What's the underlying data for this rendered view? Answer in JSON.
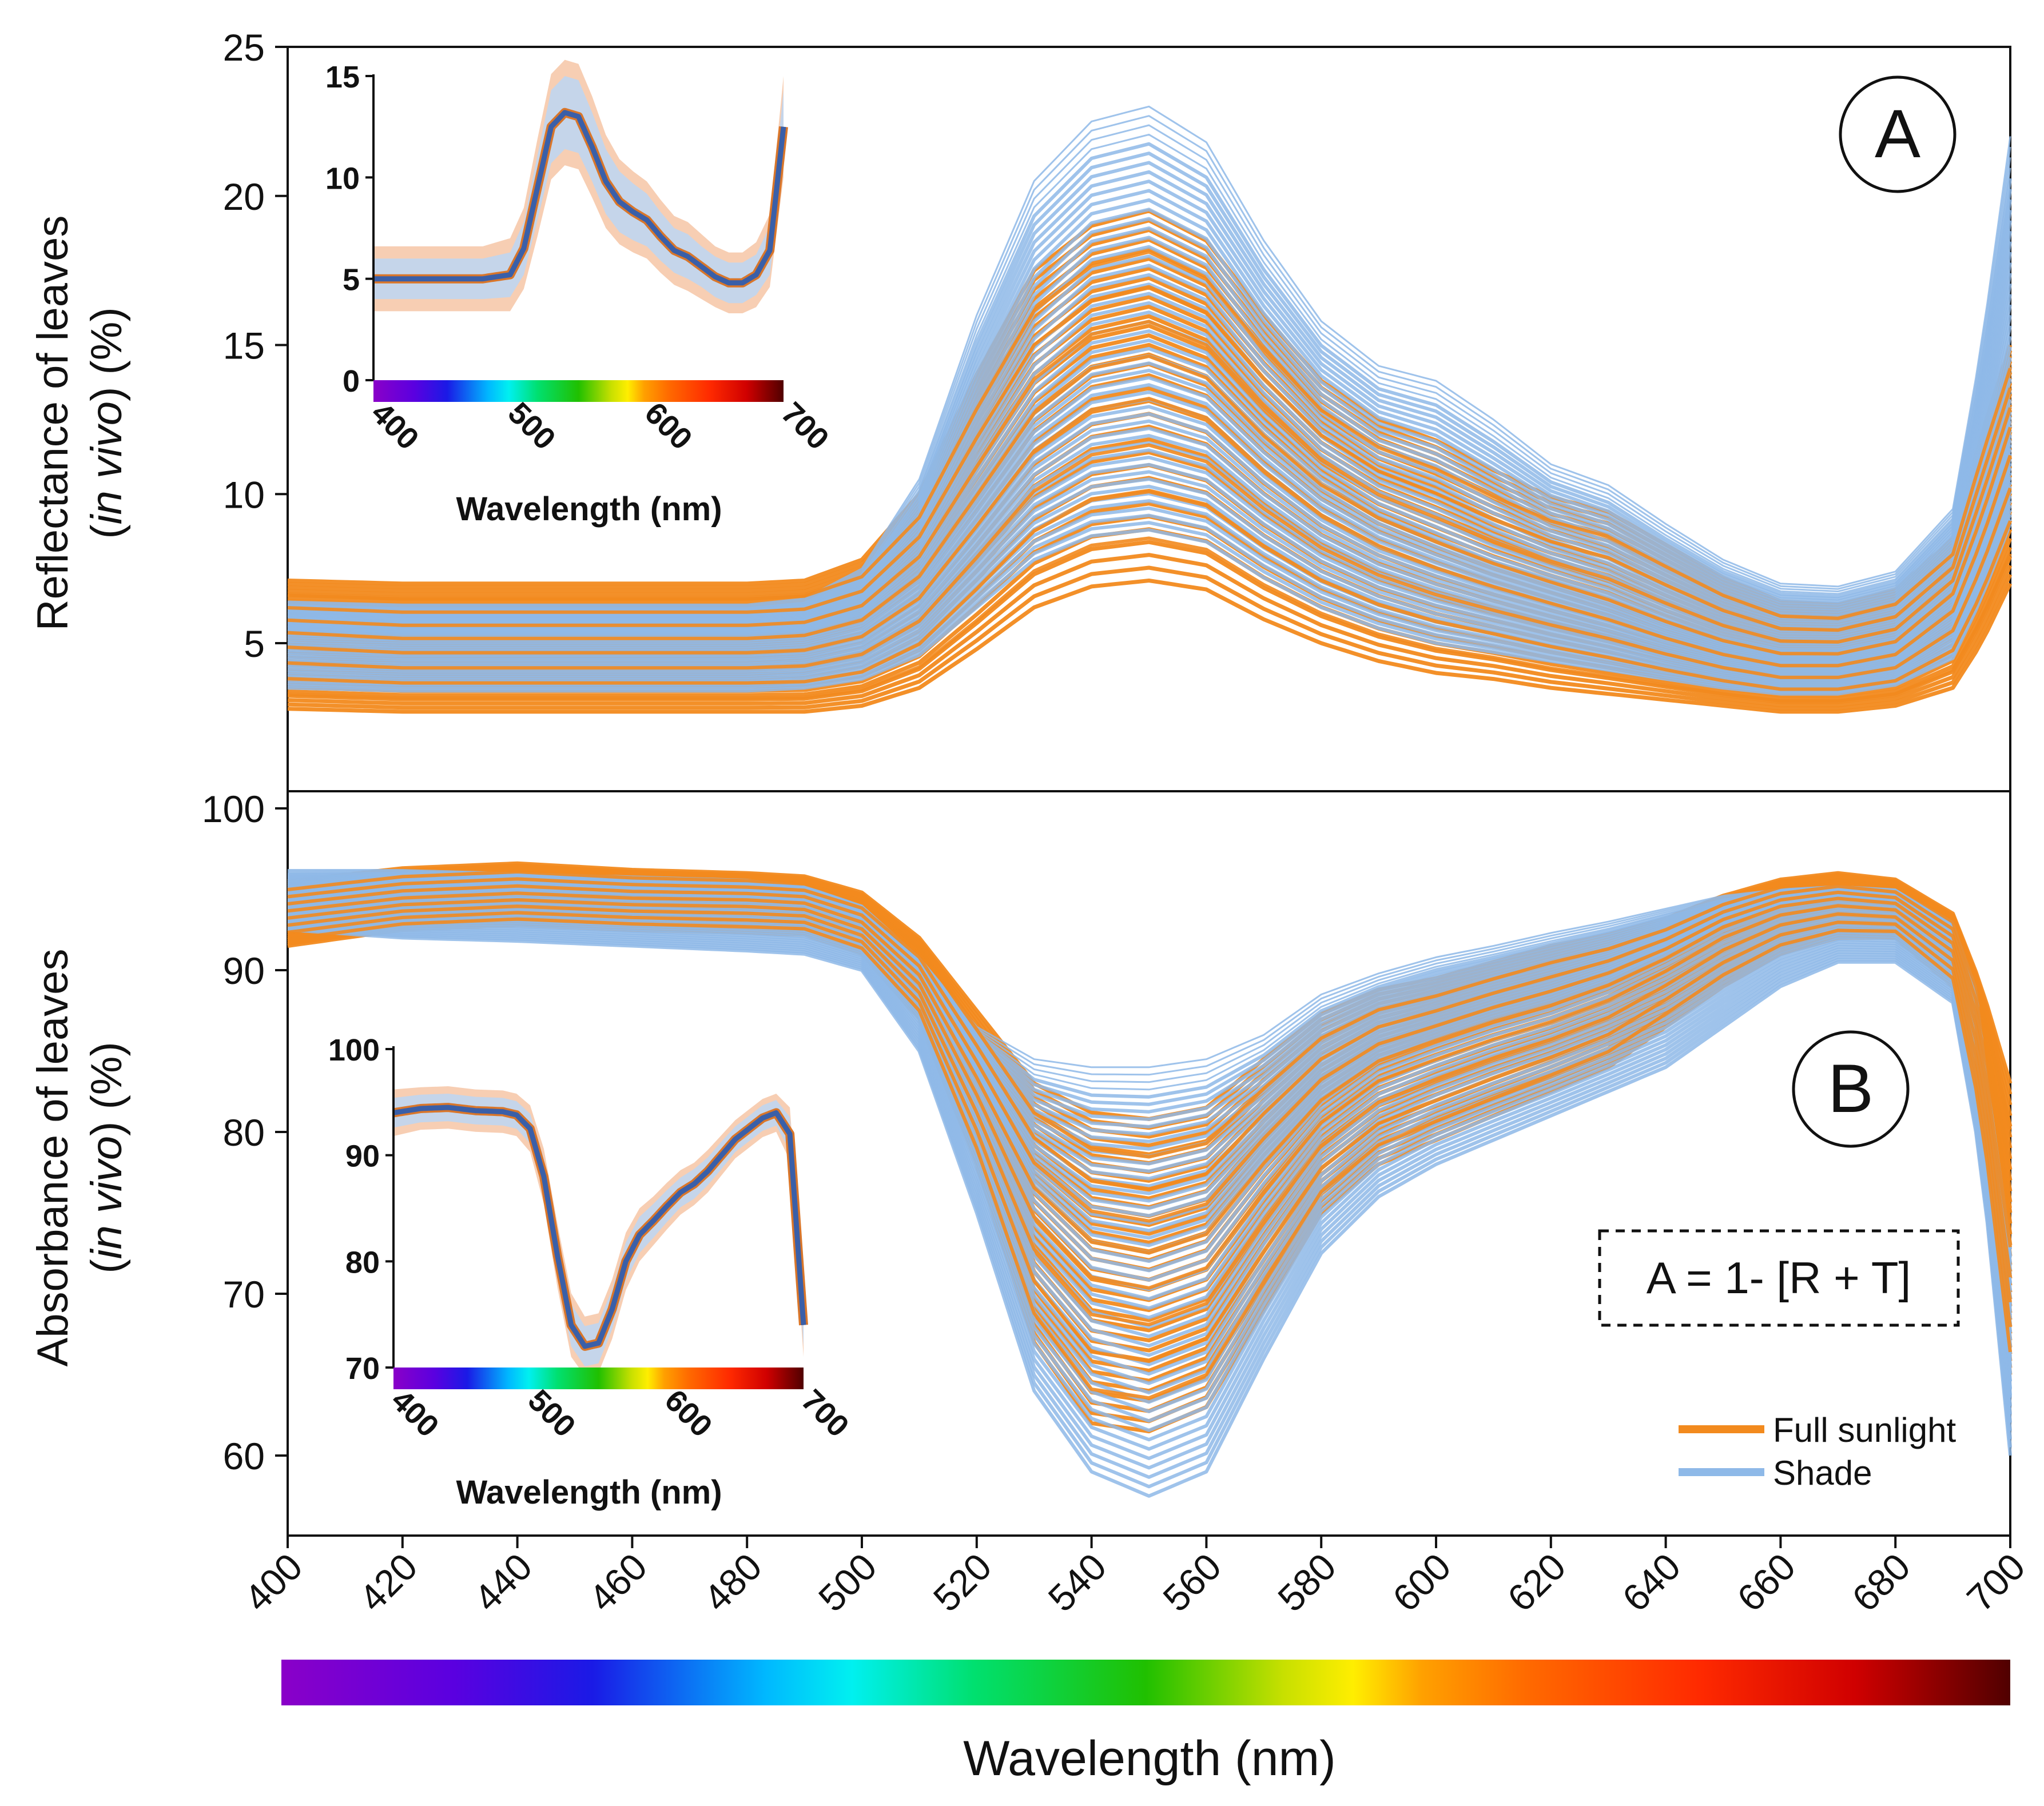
{
  "colors": {
    "sun": "#F28A1E",
    "shade": "#8EB9E8",
    "inset_sun_band": "#F6C6A6",
    "inset_shade_band": "#BFD6F0",
    "inset_mean": "#3A5FA8",
    "inset_mean_outline": "#D9762A"
  },
  "panelA": {
    "label": "A",
    "ylabel_line1": "Reflectance of leaves",
    "ylabel_line2_italic": "in vivo",
    "ylabel_line2_open": "(",
    "ylabel_line2_close": ") (%)"
  },
  "panelB": {
    "label": "B",
    "ylabel_line1": "Absorbance of leaves",
    "ylabel_line2_italic": "in vivo",
    "ylabel_line2_open": "(",
    "ylabel_line2_close": ") (%)",
    "formula": "A = 1- [R + T]"
  },
  "legend": {
    "items": [
      {
        "label": "Full sunlight",
        "color": "#F28A1E"
      },
      {
        "label": "Shade",
        "color": "#8EB9E8"
      }
    ]
  },
  "xaxis": {
    "label": "Wavelength (nm)"
  },
  "insets": {
    "A": {
      "xlabel": "Wavelength (nm)"
    },
    "B": {
      "xlabel": "Wavelength (nm)"
    }
  },
  "chart_data": [
    {
      "id": "panelA",
      "type": "line",
      "title": "",
      "ylabel": "Reflectance of leaves (in vivo) (%)",
      "xlabel": "Wavelength (nm)",
      "xlim": [
        400,
        700
      ],
      "ylim": [
        0,
        25
      ],
      "xticks": [
        400,
        420,
        440,
        460,
        480,
        500,
        520,
        540,
        560,
        580,
        600,
        620,
        640,
        660,
        680,
        700
      ],
      "yticks": [
        5,
        10,
        15,
        20,
        25
      ],
      "x": [
        400,
        420,
        440,
        460,
        480,
        490,
        500,
        510,
        520,
        530,
        540,
        550,
        560,
        570,
        580,
        590,
        600,
        610,
        620,
        630,
        640,
        650,
        660,
        670,
        680,
        690,
        695,
        700
      ],
      "series": [
        {
          "name": "Full sunlight (low)",
          "values": [
            2.8,
            2.7,
            2.7,
            2.7,
            2.7,
            2.7,
            2.9,
            3.5,
            4.8,
            6.2,
            6.9,
            7.1,
            6.8,
            5.8,
            5.0,
            4.4,
            4.0,
            3.8,
            3.5,
            3.3,
            3.1,
            2.9,
            2.7,
            2.7,
            2.9,
            3.5,
            5.0,
            7.0
          ]
        },
        {
          "name": "Full sunlight (mid)",
          "values": [
            5.2,
            5.0,
            5.0,
            5.0,
            5.0,
            5.1,
            5.6,
            7.0,
            9.6,
            12.3,
            13.8,
            14.2,
            13.5,
            11.6,
            10.0,
            8.9,
            8.1,
            7.4,
            6.8,
            6.2,
            5.5,
            4.9,
            4.5,
            4.5,
            4.9,
            6.5,
            9.0,
            12.0
          ]
        },
        {
          "name": "Full sunlight (high)",
          "values": [
            7.1,
            7.0,
            7.0,
            7.0,
            7.0,
            7.1,
            7.8,
            10.0,
            14.0,
            17.5,
            19.0,
            19.5,
            18.5,
            16.0,
            13.8,
            12.5,
            11.8,
            10.8,
            9.9,
            9.4,
            8.3,
            7.2,
            6.4,
            6.3,
            6.8,
            8.5,
            12.0,
            15.0
          ]
        },
        {
          "name": "Shade (low)",
          "values": [
            3.5,
            3.4,
            3.4,
            3.4,
            3.4,
            3.5,
            3.8,
            4.6,
            6.2,
            7.8,
            8.6,
            8.8,
            8.4,
            7.2,
            6.2,
            5.5,
            5.0,
            4.7,
            4.4,
            4.1,
            3.8,
            3.5,
            3.3,
            3.3,
            3.6,
            4.5,
            6.5,
            9.0
          ]
        },
        {
          "name": "Shade (mid)",
          "values": [
            5.4,
            5.3,
            5.3,
            5.3,
            5.3,
            5.4,
            5.9,
            7.4,
            10.2,
            13.0,
            14.6,
            15.0,
            14.3,
            12.3,
            10.6,
            9.4,
            8.6,
            7.8,
            7.2,
            6.6,
            5.8,
            5.2,
            4.8,
            4.8,
            5.2,
            6.9,
            9.6,
            13.0
          ]
        },
        {
          "name": "Shade (high)",
          "values": [
            6.4,
            6.3,
            6.3,
            6.3,
            6.3,
            6.5,
            7.5,
            10.5,
            16.0,
            20.5,
            22.5,
            23.0,
            21.8,
            18.5,
            15.8,
            14.3,
            13.8,
            12.5,
            11.0,
            10.3,
            9.0,
            7.8,
            7.0,
            6.9,
            7.4,
            9.5,
            15.0,
            22.0
          ]
        }
      ]
    },
    {
      "id": "panelB",
      "type": "line",
      "title": "",
      "ylabel": "Absorbance of leaves (in vivo) (%)",
      "xlabel": "Wavelength (nm)",
      "xlim": [
        400,
        700
      ],
      "ylim": [
        55,
        100
      ],
      "xticks": [
        400,
        420,
        440,
        460,
        480,
        500,
        520,
        540,
        560,
        580,
        600,
        620,
        640,
        660,
        680,
        700
      ],
      "xtick_labels": [
        "400",
        "420",
        "440",
        "460",
        "480",
        "500",
        "520",
        "540",
        "560",
        "580",
        "600",
        "620",
        "640",
        "660",
        "680",
        "700"
      ],
      "yticks": [
        60,
        70,
        80,
        90,
        100
      ],
      "x": [
        400,
        420,
        440,
        460,
        480,
        490,
        500,
        510,
        520,
        530,
        540,
        550,
        560,
        570,
        580,
        590,
        600,
        610,
        620,
        630,
        640,
        650,
        660,
        670,
        680,
        690,
        695,
        700
      ],
      "series": [
        {
          "name": "Full sunlight (low)",
          "values": [
            91.5,
            92.5,
            92.8,
            92.5,
            92.3,
            92.2,
            91.0,
            87.0,
            78.0,
            67.0,
            62.0,
            61.5,
            63.0,
            69.0,
            75.0,
            78.0,
            79.5,
            81.0,
            82.5,
            84.0,
            86.5,
            89.0,
            91.0,
            92.0,
            92.0,
            89.0,
            80.0,
            65.0
          ]
        },
        {
          "name": "Full sunlight (mid)",
          "values": [
            93.5,
            94.3,
            94.6,
            94.3,
            94.2,
            94.0,
            92.8,
            89.5,
            83.0,
            76.0,
            72.5,
            71.8,
            73.0,
            77.5,
            81.5,
            84.0,
            85.3,
            86.5,
            87.5,
            88.8,
            90.5,
            92.5,
            93.8,
            94.3,
            94.0,
            91.5,
            85.0,
            72.0
          ]
        },
        {
          "name": "Full sunlight (high)",
          "values": [
            95.5,
            96.3,
            96.6,
            96.2,
            96.0,
            95.8,
            94.8,
            92.0,
            87.5,
            83.0,
            81.2,
            80.8,
            81.5,
            84.5,
            87.3,
            88.8,
            89.5,
            90.5,
            91.5,
            92.2,
            93.2,
            94.6,
            95.6,
            96.0,
            95.6,
            93.5,
            89.0,
            83.0
          ]
        },
        {
          "name": "Shade (low)",
          "values": [
            92.5,
            92.0,
            91.8,
            91.5,
            91.2,
            91.0,
            90.0,
            85.0,
            75.0,
            64.0,
            59.0,
            57.5,
            59.0,
            66.0,
            72.5,
            76.0,
            78.0,
            79.5,
            81.0,
            82.5,
            84.0,
            86.5,
            89.0,
            90.5,
            90.5,
            88.0,
            78.0,
            60.0
          ]
        },
        {
          "name": "Shade (mid)",
          "values": [
            94.3,
            94.8,
            95.0,
            94.8,
            94.6,
            94.4,
            93.2,
            90.0,
            83.5,
            76.5,
            73.0,
            72.3,
            73.5,
            78.0,
            82.0,
            84.5,
            85.8,
            87.0,
            88.0,
            89.3,
            91.0,
            92.8,
            94.0,
            94.5,
            94.2,
            91.8,
            85.5,
            73.0
          ]
        },
        {
          "name": "Shade (high)",
          "values": [
            96.2,
            96.2,
            96.0,
            95.8,
            95.6,
            95.2,
            94.0,
            90.8,
            86.5,
            84.5,
            84.0,
            84.0,
            84.5,
            86.0,
            88.5,
            89.8,
            90.8,
            91.5,
            92.3,
            93.0,
            93.8,
            94.6,
            95.0,
            95.2,
            95.0,
            93.0,
            88.0,
            62.0
          ]
        }
      ]
    },
    {
      "id": "insetA",
      "type": "line",
      "xlabel": "Wavelength (nm)",
      "xlim": [
        400,
        700
      ],
      "ylim": [
        0,
        15
      ],
      "xticks": [
        400,
        500,
        600,
        700
      ],
      "yticks": [
        0,
        5,
        10,
        15
      ],
      "x": [
        400,
        420,
        440,
        460,
        480,
        500,
        510,
        520,
        530,
        540,
        550,
        560,
        570,
        580,
        590,
        600,
        610,
        620,
        630,
        640,
        650,
        660,
        670,
        680,
        690,
        700
      ],
      "series": [
        {
          "name": "Mean",
          "values": [
            5.0,
            5.0,
            5.0,
            5.0,
            5.0,
            5.2,
            6.5,
            9.5,
            12.5,
            13.2,
            13.0,
            11.5,
            9.8,
            8.8,
            8.3,
            7.9,
            7.1,
            6.4,
            6.1,
            5.6,
            5.1,
            4.8,
            4.8,
            5.2,
            6.4,
            12.5
          ]
        },
        {
          "name": "Full sunlight SD band",
          "values": [
            1.6,
            1.6,
            1.6,
            1.6,
            1.6,
            1.8,
            2.0,
            2.4,
            2.6,
            2.6,
            2.6,
            2.5,
            2.3,
            2.1,
            2.0,
            1.9,
            1.8,
            1.7,
            1.7,
            1.6,
            1.5,
            1.5,
            1.5,
            1.6,
            1.8,
            2.5
          ]
        },
        {
          "name": "Shade SD band",
          "values": [
            1.0,
            1.0,
            1.0,
            1.0,
            1.0,
            1.1,
            1.3,
            1.6,
            1.8,
            1.8,
            1.8,
            1.7,
            1.6,
            1.5,
            1.4,
            1.3,
            1.2,
            1.1,
            1.1,
            1.0,
            1.0,
            1.0,
            1.0,
            1.0,
            1.2,
            1.8
          ]
        }
      ]
    },
    {
      "id": "insetB",
      "type": "line",
      "xlabel": "Wavelength (nm)",
      "xlim": [
        400,
        700
      ],
      "ylim": [
        70,
        100
      ],
      "xticks": [
        400,
        500,
        600,
        700
      ],
      "yticks": [
        70,
        80,
        90,
        100
      ],
      "x": [
        400,
        420,
        440,
        460,
        480,
        490,
        500,
        510,
        520,
        530,
        540,
        550,
        560,
        570,
        580,
        590,
        600,
        610,
        620,
        630,
        640,
        650,
        660,
        670,
        680,
        690,
        700
      ],
      "series": [
        {
          "name": "Mean",
          "values": [
            94.0,
            94.4,
            94.5,
            94.2,
            94.1,
            93.8,
            92.5,
            88.0,
            80.5,
            74.0,
            72.0,
            72.3,
            75.5,
            80.0,
            82.5,
            83.8,
            85.2,
            86.5,
            87.3,
            88.5,
            90.0,
            91.5,
            92.5,
            93.5,
            94.0,
            92.0,
            74.0
          ]
        },
        {
          "name": "Full sunlight SD band",
          "values": [
            2.2,
            2.0,
            2.0,
            2.0,
            2.0,
            2.0,
            2.2,
            2.6,
            3.0,
            3.0,
            2.8,
            2.8,
            2.8,
            2.7,
            2.5,
            2.3,
            2.2,
            2.1,
            2.0,
            2.0,
            1.9,
            1.8,
            1.8,
            1.8,
            1.8,
            2.5,
            3.0
          ]
        },
        {
          "name": "Shade SD band",
          "values": [
            1.4,
            1.3,
            1.3,
            1.3,
            1.3,
            1.3,
            1.4,
            1.7,
            2.0,
            2.0,
            1.9,
            1.9,
            1.9,
            1.8,
            1.7,
            1.6,
            1.5,
            1.4,
            1.4,
            1.3,
            1.3,
            1.2,
            1.2,
            1.2,
            1.2,
            1.6,
            2.0
          ]
        }
      ]
    }
  ]
}
